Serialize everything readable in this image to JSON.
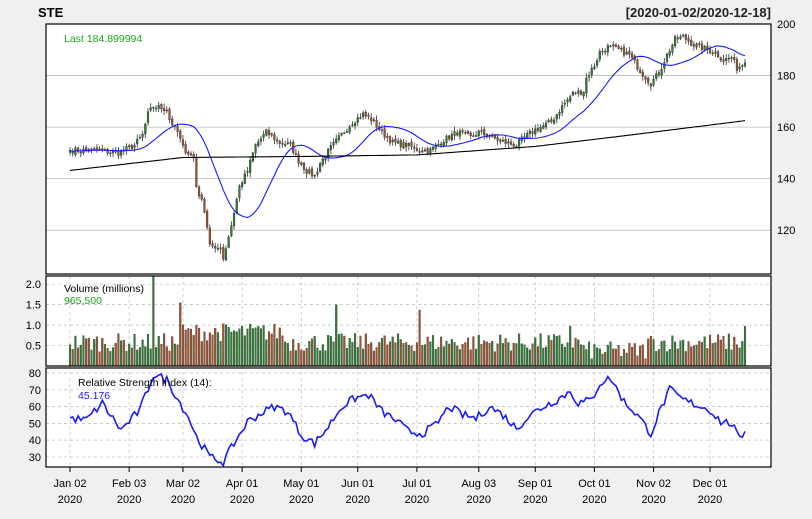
{
  "chart_data": {
    "type": "candlestick",
    "symbol": "STE",
    "date_range": "[2020-01-02/2020-12-18]",
    "last_label": "Last 184.899994",
    "price_axis": {
      "ylim": [
        103,
        200
      ],
      "ticks": [
        120,
        140,
        160,
        180,
        200
      ]
    },
    "x_ticks": [
      {
        "date": "2020-01-02",
        "line1": "Jan 02",
        "line2": "2020"
      },
      {
        "date": "2020-02-03",
        "line1": "Feb 03",
        "line2": "2020"
      },
      {
        "date": "2020-03-02",
        "line1": "Mar 02",
        "line2": "2020"
      },
      {
        "date": "2020-04-01",
        "line1": "Apr 01",
        "line2": "2020"
      },
      {
        "date": "2020-05-01",
        "line1": "May 01",
        "line2": "2020"
      },
      {
        "date": "2020-06-01",
        "line1": "Jun 01",
        "line2": "2020"
      },
      {
        "date": "2020-07-01",
        "line1": "Jul 01",
        "line2": "2020"
      },
      {
        "date": "2020-08-03",
        "line1": "Aug 03",
        "line2": "2020"
      },
      {
        "date": "2020-09-01",
        "line1": "Sep 01",
        "line2": "2020"
      },
      {
        "date": "2020-10-01",
        "line1": "Oct 01",
        "line2": "2020"
      },
      {
        "date": "2020-11-02",
        "line1": "Nov 02",
        "line2": "2020"
      },
      {
        "date": "2020-12-01",
        "line1": "Dec 01",
        "line2": "2020"
      }
    ],
    "close_anchors": [
      [
        "2020-01-02",
        151
      ],
      [
        "2020-01-15",
        151
      ],
      [
        "2020-01-28",
        150
      ],
      [
        "2020-02-05",
        153
      ],
      [
        "2020-02-10",
        157
      ],
      [
        "2020-02-12",
        165
      ],
      [
        "2020-02-14",
        168
      ],
      [
        "2020-02-21",
        167
      ],
      [
        "2020-02-24",
        163
      ],
      [
        "2020-02-27",
        158
      ],
      [
        "2020-03-02",
        152
      ],
      [
        "2020-03-06",
        148
      ],
      [
        "2020-03-09",
        137
      ],
      [
        "2020-03-12",
        128
      ],
      [
        "2020-03-16",
        115
      ],
      [
        "2020-03-18",
        112
      ],
      [
        "2020-03-20",
        114
      ],
      [
        "2020-03-23",
        109
      ],
      [
        "2020-03-26",
        122
      ],
      [
        "2020-03-31",
        137
      ],
      [
        "2020-04-03",
        143
      ],
      [
        "2020-04-08",
        153
      ],
      [
        "2020-04-14",
        158
      ],
      [
        "2020-04-21",
        154
      ],
      [
        "2020-04-27",
        153
      ],
      [
        "2020-04-30",
        147
      ],
      [
        "2020-05-05",
        143
      ],
      [
        "2020-05-08",
        141
      ],
      [
        "2020-05-12",
        146
      ],
      [
        "2020-05-18",
        152
      ],
      [
        "2020-05-22",
        157
      ],
      [
        "2020-05-28",
        162
      ],
      [
        "2020-06-03",
        165
      ],
      [
        "2020-06-08",
        163
      ],
      [
        "2020-06-12",
        158
      ],
      [
        "2020-06-18",
        154
      ],
      [
        "2020-06-25",
        153
      ],
      [
        "2020-07-02",
        151
      ],
      [
        "2020-07-08",
        151
      ],
      [
        "2020-07-15",
        155
      ],
      [
        "2020-07-22",
        158
      ],
      [
        "2020-07-29",
        156
      ],
      [
        "2020-08-03",
        158
      ],
      [
        "2020-08-10",
        156
      ],
      [
        "2020-08-17",
        154
      ],
      [
        "2020-08-21",
        153
      ],
      [
        "2020-08-26",
        156
      ],
      [
        "2020-09-01",
        159
      ],
      [
        "2020-09-09",
        162
      ],
      [
        "2020-09-15",
        168
      ],
      [
        "2020-09-21",
        173
      ],
      [
        "2020-09-25",
        174
      ],
      [
        "2020-09-28",
        179
      ],
      [
        "2020-10-01",
        184
      ],
      [
        "2020-10-05",
        189
      ],
      [
        "2020-10-08",
        191
      ],
      [
        "2020-10-14",
        190
      ],
      [
        "2020-10-20",
        188
      ],
      [
        "2020-10-26",
        182
      ],
      [
        "2020-10-30",
        177
      ],
      [
        "2020-11-04",
        181
      ],
      [
        "2020-11-09",
        188
      ],
      [
        "2020-11-12",
        194
      ],
      [
        "2020-11-17",
        195
      ],
      [
        "2020-11-23",
        192
      ],
      [
        "2020-11-30",
        190
      ],
      [
        "2020-12-03",
        189
      ],
      [
        "2020-12-08",
        186
      ],
      [
        "2020-12-11",
        187
      ],
      [
        "2020-12-15",
        183
      ],
      [
        "2020-12-18",
        185
      ]
    ],
    "ma_short_name": "SMA(20)",
    "ma_short_color": "#1a1aff",
    "ma_long_name": "SMA(200)",
    "ma_long_color": "#000000",
    "ma_long_anchors": [
      [
        "2020-01-02",
        143.2
      ],
      [
        "2020-03-02",
        148.2
      ],
      [
        "2020-05-01",
        148.6
      ],
      [
        "2020-07-01",
        149.2
      ],
      [
        "2020-09-01",
        152.5
      ],
      [
        "2020-10-15",
        156.5
      ],
      [
        "2020-12-18",
        162.5
      ]
    ],
    "volume": {
      "label": "Volume (millions)",
      "last_value_label": "965,500",
      "ylim": [
        0,
        2.2
      ],
      "ticks": [
        0.5,
        1.0,
        1.5,
        2.0
      ],
      "tick_labels": [
        "0.5",
        "1.0",
        "1.5",
        "2.0"
      ],
      "spikes": [
        [
          "2020-02-14",
          2.2
        ],
        [
          "2020-02-28",
          1.55
        ],
        [
          "2020-05-20",
          1.5
        ],
        [
          "2020-07-02",
          1.37
        ],
        [
          "2020-12-18",
          0.97
        ],
        [
          "2020-09-18",
          0.97
        ]
      ],
      "up_color": "#2e7d32",
      "down_color": "#a0522d"
    },
    "rsi": {
      "label": "Relative Strength Index (14):",
      "last_value_label": "45.176",
      "ylim": [
        24,
        83
      ],
      "ticks": [
        30,
        40,
        50,
        60,
        70,
        80
      ],
      "anchors": [
        [
          "2020-01-02",
          53
        ],
        [
          "2020-01-10",
          52
        ],
        [
          "2020-01-20",
          62
        ],
        [
          "2020-01-29",
          46
        ],
        [
          "2020-02-07",
          58
        ],
        [
          "2020-02-14",
          79
        ],
        [
          "2020-02-21",
          76
        ],
        [
          "2020-02-28",
          62
        ],
        [
          "2020-03-04",
          54
        ],
        [
          "2020-03-09",
          42
        ],
        [
          "2020-03-16",
          30
        ],
        [
          "2020-03-23",
          27
        ],
        [
          "2020-03-27",
          38
        ],
        [
          "2020-04-03",
          51
        ],
        [
          "2020-04-10",
          56
        ],
        [
          "2020-04-17",
          60
        ],
        [
          "2020-04-24",
          57
        ],
        [
          "2020-05-01",
          43
        ],
        [
          "2020-05-08",
          38
        ],
        [
          "2020-05-15",
          48
        ],
        [
          "2020-05-22",
          60
        ],
        [
          "2020-05-29",
          65
        ],
        [
          "2020-06-05",
          67
        ],
        [
          "2020-06-12",
          57
        ],
        [
          "2020-06-19",
          52
        ],
        [
          "2020-06-26",
          45
        ],
        [
          "2020-07-03",
          44
        ],
        [
          "2020-07-10",
          49
        ],
        [
          "2020-07-17",
          60
        ],
        [
          "2020-07-24",
          55
        ],
        [
          "2020-07-31",
          53
        ],
        [
          "2020-08-07",
          60
        ],
        [
          "2020-08-14",
          55
        ],
        [
          "2020-08-21",
          47
        ],
        [
          "2020-08-28",
          55
        ],
        [
          "2020-09-04",
          60
        ],
        [
          "2020-09-11",
          64
        ],
        [
          "2020-09-18",
          69
        ],
        [
          "2020-09-23",
          62
        ],
        [
          "2020-09-30",
          64
        ],
        [
          "2020-10-05",
          74
        ],
        [
          "2020-10-09",
          77
        ],
        [
          "2020-10-16",
          63
        ],
        [
          "2020-10-23",
          55
        ],
        [
          "2020-10-30",
          44
        ],
        [
          "2020-11-04",
          56
        ],
        [
          "2020-11-10",
          70
        ],
        [
          "2020-11-17",
          64
        ],
        [
          "2020-11-24",
          61
        ],
        [
          "2020-12-01",
          58
        ],
        [
          "2020-12-07",
          51
        ],
        [
          "2020-12-11",
          50
        ],
        [
          "2020-12-16",
          40
        ],
        [
          "2020-12-18",
          45.2
        ]
      ]
    },
    "colors": {
      "up": "#2e7d32",
      "down": "#a0522d",
      "wick": "#333333",
      "last_label": "#1fa51f",
      "volume_value": "#1fa51f",
      "rsi_value": "#1a1aff",
      "rsi_line": "#1a1aff",
      "grid": "#bbbbbb"
    },
    "grid": true
  }
}
